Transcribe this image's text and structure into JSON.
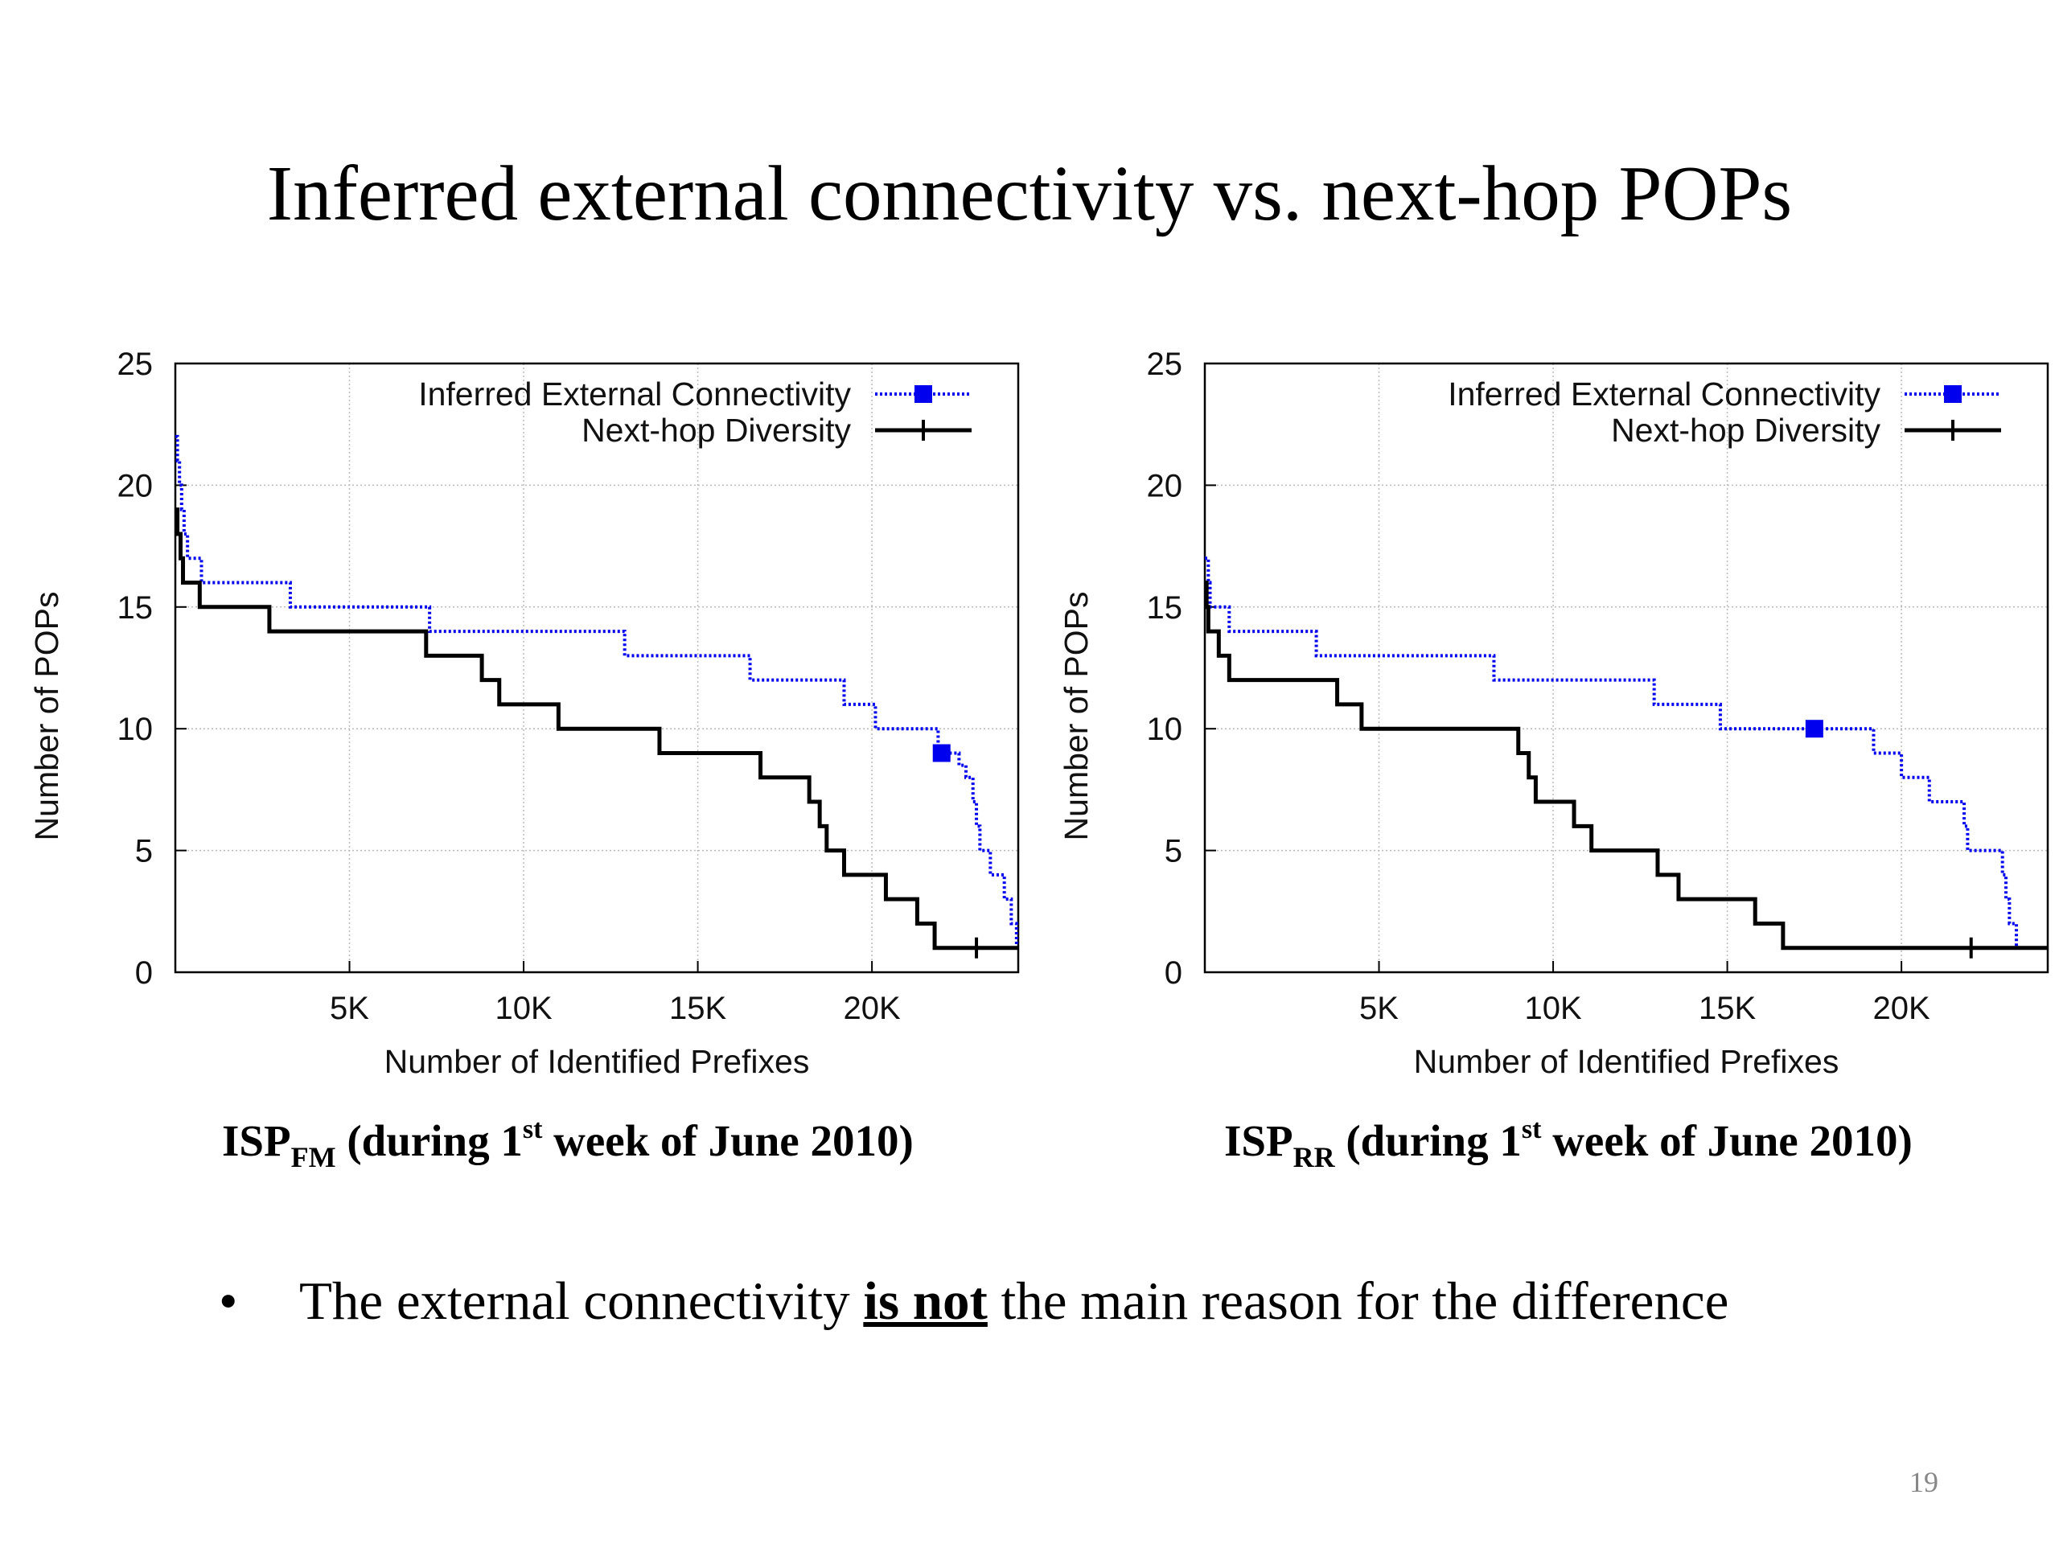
{
  "slide": {
    "title": "Inferred external connectivity vs. next-hop POPs",
    "bullet": {
      "marker": "•",
      "pre": "The external connectivity ",
      "emphasis": "is not",
      "post": " the main reason for the difference"
    },
    "page_number": "19"
  },
  "captions": [
    {
      "prefix": "ISP",
      "subscript": "FM",
      "text1": " (during 1",
      "sup": "st",
      "text2": " week of June 2010)"
    },
    {
      "prefix": "ISP",
      "subscript": "RR",
      "text1": " (during 1",
      "sup": "st",
      "text2": " week of June 2010)"
    }
  ],
  "colors": {
    "inferred": "#0000ee",
    "nexthop": "#000000",
    "grid": "#bbbbbb"
  },
  "chart_data": [
    {
      "type": "line",
      "xlabel": "Number of Identified Prefixes",
      "ylabel": "Number of POPs",
      "xlim": [
        0,
        24200
      ],
      "ylim": [
        0,
        25
      ],
      "xticks": [
        5000,
        10000,
        15000,
        20000
      ],
      "xtick_labels": [
        "5K",
        "10K",
        "15K",
        "20K"
      ],
      "yticks": [
        0,
        5,
        10,
        15,
        20,
        25
      ],
      "ytick_labels": [
        "0",
        "5",
        "10",
        "15",
        "20",
        "25"
      ],
      "grid": true,
      "legend_position": "top-right",
      "series": [
        {
          "name": "Inferred External Connectivity",
          "style": "dotted",
          "marker": "square",
          "marker_point": [
            22000,
            9
          ],
          "points": [
            [
              0,
              22
            ],
            [
              60,
              21
            ],
            [
              120,
              20
            ],
            [
              180,
              19
            ],
            [
              250,
              18
            ],
            [
              350,
              17
            ],
            [
              750,
              16
            ],
            [
              3300,
              15
            ],
            [
              7300,
              14
            ],
            [
              12900,
              13
            ],
            [
              16500,
              12
            ],
            [
              19200,
              11
            ],
            [
              20100,
              10
            ],
            [
              21900,
              9
            ],
            [
              22500,
              8.5
            ],
            [
              22700,
              8
            ],
            [
              22900,
              7
            ],
            [
              23000,
              6
            ],
            [
              23100,
              5
            ],
            [
              23400,
              4
            ],
            [
              23800,
              3
            ],
            [
              24000,
              2
            ],
            [
              24150,
              1
            ],
            [
              24200,
              1
            ]
          ]
        },
        {
          "name": "Next-hop Diversity",
          "style": "solid",
          "marker": "plus",
          "marker_point": [
            23000,
            1
          ],
          "points": [
            [
              0,
              19
            ],
            [
              60,
              18
            ],
            [
              150,
              17
            ],
            [
              220,
              16
            ],
            [
              700,
              15
            ],
            [
              2700,
              14
            ],
            [
              7200,
              13
            ],
            [
              8800,
              12
            ],
            [
              9300,
              11
            ],
            [
              11000,
              10
            ],
            [
              13900,
              9
            ],
            [
              16800,
              8
            ],
            [
              18200,
              7
            ],
            [
              18500,
              6
            ],
            [
              18700,
              5
            ],
            [
              19200,
              4
            ],
            [
              20400,
              3
            ],
            [
              21300,
              2
            ],
            [
              21800,
              1
            ],
            [
              24200,
              1
            ]
          ]
        }
      ]
    },
    {
      "type": "line",
      "xlabel": "Number of Identified Prefixes",
      "ylabel": "Number of POPs",
      "xlim": [
        0,
        24200
      ],
      "ylim": [
        0,
        25
      ],
      "xticks": [
        5000,
        10000,
        15000,
        20000
      ],
      "xtick_labels": [
        "5K",
        "10K",
        "15K",
        "20K"
      ],
      "yticks": [
        0,
        5,
        10,
        15,
        20,
        25
      ],
      "ytick_labels": [
        "0",
        "5",
        "10",
        "15",
        "20",
        "25"
      ],
      "grid": true,
      "legend_position": "top-right",
      "series": [
        {
          "name": "Inferred External Connectivity",
          "style": "dotted",
          "marker": "square",
          "marker_point": [
            17500,
            10
          ],
          "points": [
            [
              0,
              17
            ],
            [
              100,
              16
            ],
            [
              150,
              15
            ],
            [
              700,
              14
            ],
            [
              3200,
              13
            ],
            [
              8300,
              12
            ],
            [
              12900,
              11
            ],
            [
              14800,
              10
            ],
            [
              19200,
              9
            ],
            [
              20000,
              8
            ],
            [
              20800,
              7
            ],
            [
              21800,
              6
            ],
            [
              21900,
              5
            ],
            [
              22900,
              4
            ],
            [
              23000,
              3
            ],
            [
              23100,
              2
            ],
            [
              23300,
              1
            ]
          ]
        },
        {
          "name": "Next-hop Diversity",
          "style": "solid",
          "marker": "plus",
          "marker_point": [
            22000,
            1
          ],
          "points": [
            [
              0,
              16
            ],
            [
              50,
              15
            ],
            [
              100,
              14
            ],
            [
              400,
              13
            ],
            [
              700,
              12
            ],
            [
              3800,
              11
            ],
            [
              4500,
              10
            ],
            [
              9000,
              9
            ],
            [
              9300,
              8
            ],
            [
              9500,
              7
            ],
            [
              10600,
              6
            ],
            [
              11100,
              5
            ],
            [
              13000,
              4
            ],
            [
              13600,
              3
            ],
            [
              15800,
              2
            ],
            [
              16600,
              1
            ],
            [
              24200,
              1
            ]
          ]
        }
      ]
    }
  ]
}
